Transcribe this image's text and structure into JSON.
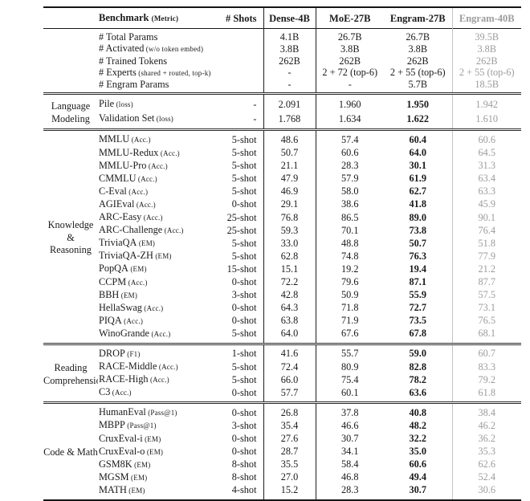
{
  "table": {
    "colors": {
      "text": "#1a1a1a",
      "muted": "#9c9c9c",
      "rule_gray": "#c2c2c2"
    },
    "header": {
      "benchmark_label": "Benchmark",
      "benchmark_metric": "(Metric)",
      "shots_label": "# Shots",
      "models": [
        "Dense-4B",
        "MoE-27B",
        "Engram-27B",
        "Engram-40B"
      ]
    },
    "sections": [
      {
        "id": "params",
        "label_lines": [],
        "bold_engram": false,
        "rows": [
          {
            "name": "# Total Params",
            "metric": "",
            "shots": "",
            "values": [
              "4.1B",
              "26.7B",
              "26.7B",
              "39.5B"
            ]
          },
          {
            "name": "# Activated",
            "metric": "(w/o token embed)",
            "shots": "",
            "values": [
              "3.8B",
              "3.8B",
              "3.8B",
              "3.8B"
            ]
          },
          {
            "name": "# Trained Tokens",
            "metric": "",
            "shots": "",
            "values": [
              "262B",
              "262B",
              "262B",
              "262B"
            ]
          },
          {
            "name": "# Experts",
            "metric": "(shared + routed, top-k)",
            "shots": "",
            "values": [
              "-",
              "2 + 72 (top-6)",
              "2 + 55 (top-6)",
              "2 + 55 (top-6)"
            ]
          },
          {
            "name": "# Engram Params",
            "metric": "",
            "shots": "",
            "values": [
              "-",
              "-",
              "5.7B",
              "18.5B"
            ]
          }
        ]
      },
      {
        "id": "language-modeling",
        "label_lines": [
          "Language",
          "Modeling"
        ],
        "bold_engram": true,
        "rows": [
          {
            "name": "Pile",
            "metric": "(loss)",
            "shots": "-",
            "values": [
              "2.091",
              "1.960",
              "1.950",
              "1.942"
            ]
          },
          {
            "name": "Validation Set",
            "metric": "(loss)",
            "shots": "-",
            "values": [
              "1.768",
              "1.634",
              "1.622",
              "1.610"
            ]
          }
        ]
      },
      {
        "id": "knowledge-reasoning",
        "label_lines": [
          "Knowledge",
          "&",
          "Reasoning"
        ],
        "bold_engram": true,
        "rows": [
          {
            "name": "MMLU",
            "metric": "(Acc.)",
            "shots": "5-shot",
            "values": [
              "48.6",
              "57.4",
              "60.4",
              "60.6"
            ]
          },
          {
            "name": "MMLU-Redux",
            "metric": "(Acc.)",
            "shots": "5-shot",
            "values": [
              "50.7",
              "60.6",
              "64.0",
              "64.5"
            ]
          },
          {
            "name": "MMLU-Pro",
            "metric": "(Acc.)",
            "shots": "5-shot",
            "values": [
              "21.1",
              "28.3",
              "30.1",
              "31.3"
            ]
          },
          {
            "name": "CMMLU",
            "metric": "(Acc.)",
            "shots": "5-shot",
            "values": [
              "47.9",
              "57.9",
              "61.9",
              "63.4"
            ]
          },
          {
            "name": "C-Eval",
            "metric": "(Acc.)",
            "shots": "5-shot",
            "values": [
              "46.9",
              "58.0",
              "62.7",
              "63.3"
            ]
          },
          {
            "name": "AGIEval",
            "metric": "(Acc.)",
            "shots": "0-shot",
            "values": [
              "29.1",
              "38.6",
              "41.8",
              "45.9"
            ]
          },
          {
            "name": "ARC-Easy",
            "metric": "(Acc.)",
            "shots": "25-shot",
            "values": [
              "76.8",
              "86.5",
              "89.0",
              "90.1"
            ]
          },
          {
            "name": "ARC-Challenge",
            "metric": "(Acc.)",
            "shots": "25-shot",
            "values": [
              "59.3",
              "70.1",
              "73.8",
              "76.4"
            ]
          },
          {
            "name": "TriviaQA",
            "metric": "(EM)",
            "shots": "5-shot",
            "values": [
              "33.0",
              "48.8",
              "50.7",
              "51.8"
            ]
          },
          {
            "name": "TriviaQA-ZH",
            "metric": "(EM)",
            "shots": "5-shot",
            "values": [
              "62.8",
              "74.8",
              "76.3",
              "77.9"
            ]
          },
          {
            "name": "PopQA",
            "metric": "(EM)",
            "shots": "15-shot",
            "values": [
              "15.1",
              "19.2",
              "19.4",
              "21.2"
            ]
          },
          {
            "name": "CCPM",
            "metric": "(Acc.)",
            "shots": "0-shot",
            "values": [
              "72.2",
              "79.6",
              "87.1",
              "87.7"
            ]
          },
          {
            "name": "BBH",
            "metric": "(EM)",
            "shots": "3-shot",
            "values": [
              "42.8",
              "50.9",
              "55.9",
              "57.5"
            ]
          },
          {
            "name": "HellaSwag",
            "metric": "(Acc.)",
            "shots": "0-shot",
            "values": [
              "64.3",
              "71.8",
              "72.7",
              "73.1"
            ]
          },
          {
            "name": "PIQA",
            "metric": "(Acc.)",
            "shots": "0-shot",
            "values": [
              "63.8",
              "71.9",
              "73.5",
              "76.5"
            ]
          },
          {
            "name": "WinoGrande",
            "metric": "(Acc.)",
            "shots": "5-shot",
            "values": [
              "64.0",
              "67.6",
              "67.8",
              "68.1"
            ]
          }
        ]
      },
      {
        "id": "reading-comprehension",
        "label_lines": [
          "Reading",
          "Comprehension"
        ],
        "bold_engram": true,
        "rows": [
          {
            "name": "DROP",
            "metric": "(F1)",
            "shots": "1-shot",
            "values": [
              "41.6",
              "55.7",
              "59.0",
              "60.7"
            ]
          },
          {
            "name": "RACE-Middle",
            "metric": "(Acc.)",
            "shots": "5-shot",
            "values": [
              "72.4",
              "80.9",
              "82.8",
              "83.3"
            ]
          },
          {
            "name": "RACE-High",
            "metric": "(Acc.)",
            "shots": "5-shot",
            "values": [
              "66.0",
              "75.4",
              "78.2",
              "79.2"
            ]
          },
          {
            "name": "C3",
            "metric": "(Acc.)",
            "shots": "0-shot",
            "values": [
              "57.7",
              "60.1",
              "63.6",
              "61.8"
            ]
          }
        ]
      },
      {
        "id": "code-math",
        "label_lines": [
          "Code & Math"
        ],
        "bold_engram": true,
        "rows": [
          {
            "name": "HumanEval",
            "metric": "(Pass@1)",
            "shots": "0-shot",
            "values": [
              "26.8",
              "37.8",
              "40.8",
              "38.4"
            ]
          },
          {
            "name": "MBPP",
            "metric": "(Pass@1)",
            "shots": "3-shot",
            "values": [
              "35.4",
              "46.6",
              "48.2",
              "46.2"
            ]
          },
          {
            "name": "CruxEval-i",
            "metric": "(EM)",
            "shots": "0-shot",
            "values": [
              "27.6",
              "30.7",
              "32.2",
              "36.2"
            ]
          },
          {
            "name": "CruxEval-o",
            "metric": "(EM)",
            "shots": "0-shot",
            "values": [
              "28.7",
              "34.1",
              "35.0",
              "35.3"
            ]
          },
          {
            "name": "GSM8K",
            "metric": "(EM)",
            "shots": "8-shot",
            "values": [
              "35.5",
              "58.4",
              "60.6",
              "62.6"
            ]
          },
          {
            "name": "MGSM",
            "metric": "(EM)",
            "shots": "8-shot",
            "values": [
              "27.0",
              "46.8",
              "49.4",
              "52.4"
            ]
          },
          {
            "name": "MATH",
            "metric": "(EM)",
            "shots": "4-shot",
            "values": [
              "15.2",
              "28.3",
              "30.7",
              "30.6"
            ]
          }
        ]
      }
    ]
  }
}
